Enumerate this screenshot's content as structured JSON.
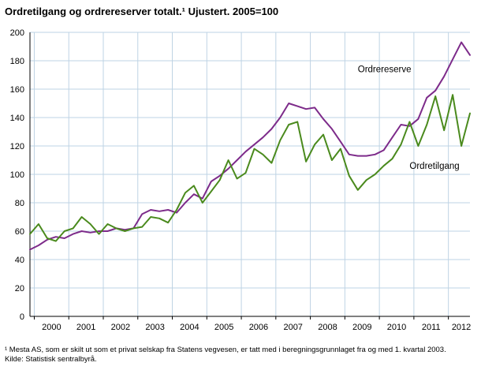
{
  "title": "Ordretilgang og ordrereserver totalt.¹ Ujustert. 2005=100",
  "footnote": "¹ Mesta AS, som er skilt ut som et privat selskap fra Statens vegvesen, er tatt med i beregningsgrunnlaget fra og med 1. kvartal 2003.",
  "source": "Kilde: Statistisk sentralbyrå.",
  "chart_data": {
    "type": "line",
    "title": "Ordretilgang og ordrereserver totalt. Ujustert. 2005=100",
    "xlabel": "",
    "ylabel": "",
    "ylim": [
      0,
      200
    ],
    "ytick_step": 20,
    "grid": true,
    "gridline_color": "#bed3e4",
    "axis_color": "#000000",
    "x": [
      "1999K4",
      "2000K1",
      "2000K2",
      "2000K3",
      "2000K4",
      "2001K1",
      "2001K2",
      "2001K3",
      "2001K4",
      "2002K1",
      "2002K2",
      "2002K3",
      "2002K4",
      "2003K1",
      "2003K2",
      "2003K3",
      "2003K4",
      "2004K1",
      "2004K2",
      "2004K3",
      "2004K4",
      "2005K1",
      "2005K2",
      "2005K3",
      "2005K4",
      "2006K1",
      "2006K2",
      "2006K3",
      "2006K4",
      "2007K1",
      "2007K2",
      "2007K3",
      "2007K4",
      "2008K1",
      "2008K2",
      "2008K3",
      "2008K4",
      "2009K1",
      "2009K2",
      "2009K3",
      "2009K4",
      "2010K1",
      "2010K2",
      "2010K3",
      "2010K4",
      "2011K1",
      "2011K2",
      "2011K3",
      "2011K4",
      "2012K1",
      "2012K2",
      "2012K3"
    ],
    "year_tick_labels": [
      "2000",
      "2001",
      "2002",
      "2003",
      "2004",
      "2005",
      "2006",
      "2007",
      "2008",
      "2009",
      "2010",
      "2011",
      "2012"
    ],
    "series": [
      {
        "name": "Ordrereserve",
        "color": "#7d2b8a",
        "values": [
          47,
          50,
          54,
          56,
          55,
          58,
          60,
          59,
          60,
          60,
          62,
          61,
          62,
          72,
          75,
          74,
          75,
          73,
          80,
          86,
          83,
          95,
          99,
          104,
          110,
          116,
          121,
          126,
          132,
          140,
          150,
          148,
          146,
          147,
          139,
          132,
          123,
          114,
          113,
          113,
          114,
          117,
          126,
          135,
          134,
          139,
          154,
          159,
          169,
          181,
          193,
          184
        ]
      },
      {
        "name": "Ordretilgang",
        "color": "#4a8a1d",
        "values": [
          58,
          65,
          55,
          53,
          60,
          62,
          70,
          65,
          58,
          65,
          62,
          60,
          62,
          63,
          70,
          69,
          66,
          75,
          87,
          92,
          80,
          88,
          96,
          110,
          97,
          101,
          118,
          114,
          108,
          124,
          135,
          137,
          109,
          121,
          128,
          110,
          118,
          99,
          89,
          96,
          100,
          106,
          111,
          121,
          137,
          120,
          135,
          155,
          131,
          156,
          120,
          143
        ]
      }
    ],
    "annotations": [
      {
        "label": "Ordrereserve",
        "x_index": 38,
        "y": 172
      },
      {
        "label": "Ordretilgang",
        "x_index": 44,
        "y": 104
      }
    ],
    "legend_position": "inline-labels"
  }
}
